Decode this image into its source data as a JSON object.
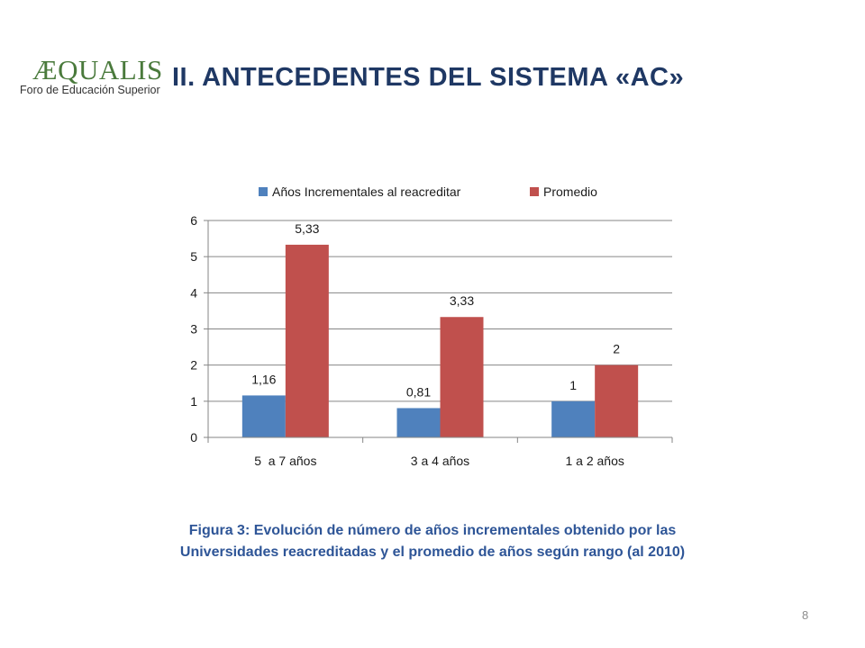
{
  "header": {
    "logo": {
      "main": "ÆQUALIS",
      "sub": "Foro de Educación Superior"
    },
    "title": "II. ANTECEDENTES DEL SISTEMA «AC»"
  },
  "chart_data": {
    "type": "bar",
    "categories": [
      "5  a 7 años",
      "3 a 4 años",
      "1 a 2 años"
    ],
    "series": [
      {
        "name": "Años Incrementales al reacreditar",
        "values": [
          1.16,
          0.81,
          1
        ],
        "labels": [
          "1,16",
          "0,81",
          "1"
        ],
        "color": "#4f81bd"
      },
      {
        "name": "Promedio",
        "values": [
          5.33,
          3.33,
          2
        ],
        "labels": [
          "5,33",
          "3,33",
          "2"
        ],
        "color": "#c0504d"
      }
    ],
    "ylim": [
      0,
      6
    ],
    "yticks": [
      "0",
      "1",
      "2",
      "3",
      "4",
      "5",
      "6"
    ],
    "grid": true,
    "legend": "top"
  },
  "caption": {
    "line1": "Figura 3: Evolución de número de años incrementales obtenido por las",
    "line2": "Universidades reacreditadas y el promedio de años según rango (al 2010)"
  },
  "page_number": "8"
}
